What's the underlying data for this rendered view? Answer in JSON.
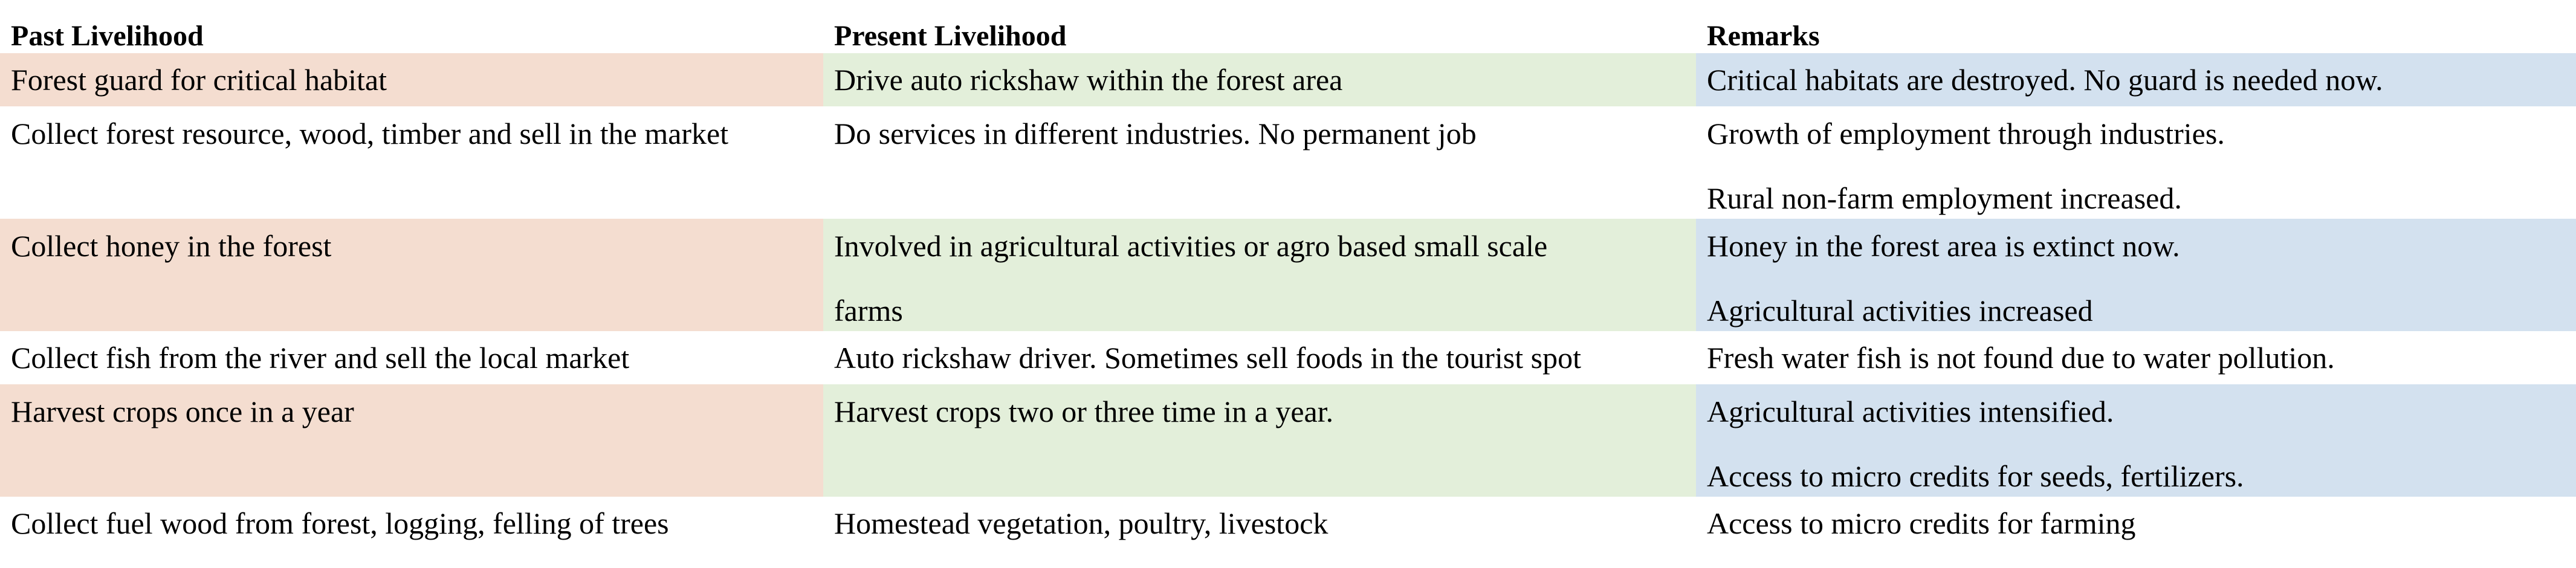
{
  "headers": {
    "past": "Past Livelihood",
    "present": "Present Livelihood",
    "remarks": "Remarks"
  },
  "rows": [
    {
      "past": [
        "Forest guard for critical habitat"
      ],
      "present": [
        "Drive auto rickshaw within the forest area"
      ],
      "remarks": [
        "Critical habitats are destroyed. No guard is needed now."
      ]
    },
    {
      "past": [
        "Collect forest resource, wood, timber and sell in the market"
      ],
      "present": [
        "Do services in different industries. No permanent job"
      ],
      "remarks": [
        "Growth of employment through industries.",
        "Rural non-farm employment increased."
      ]
    },
    {
      "past": [
        "Collect honey in the forest"
      ],
      "present": [
        "Involved in agricultural activities or agro based small scale",
        "farms"
      ],
      "remarks": [
        "Honey in the forest area is extinct now.",
        "Agricultural activities increased"
      ]
    },
    {
      "past": [
        "Collect fish from the river and sell the local market"
      ],
      "present": [
        "Auto rickshaw driver. Sometimes sell foods in the tourist spot"
      ],
      "remarks": [
        "Fresh water fish is not found due to water pollution."
      ]
    },
    {
      "past": [
        "Harvest crops once in a year"
      ],
      "present": [
        "Harvest crops two or three time in a year."
      ],
      "remarks": [
        "Agricultural activities intensified.",
        "Access to micro credits for seeds, fertilizers."
      ]
    },
    {
      "past": [
        "Collect fuel wood from forest, logging, felling of trees"
      ],
      "present": [
        "Homestead vegetation, poultry, livestock"
      ],
      "remarks": [
        "Access to micro credits for farming"
      ]
    }
  ],
  "colors": {
    "past_shade": "#f4ddd0",
    "present_shade": "#e3efda",
    "remarks_shade": "#d3e1ef"
  }
}
